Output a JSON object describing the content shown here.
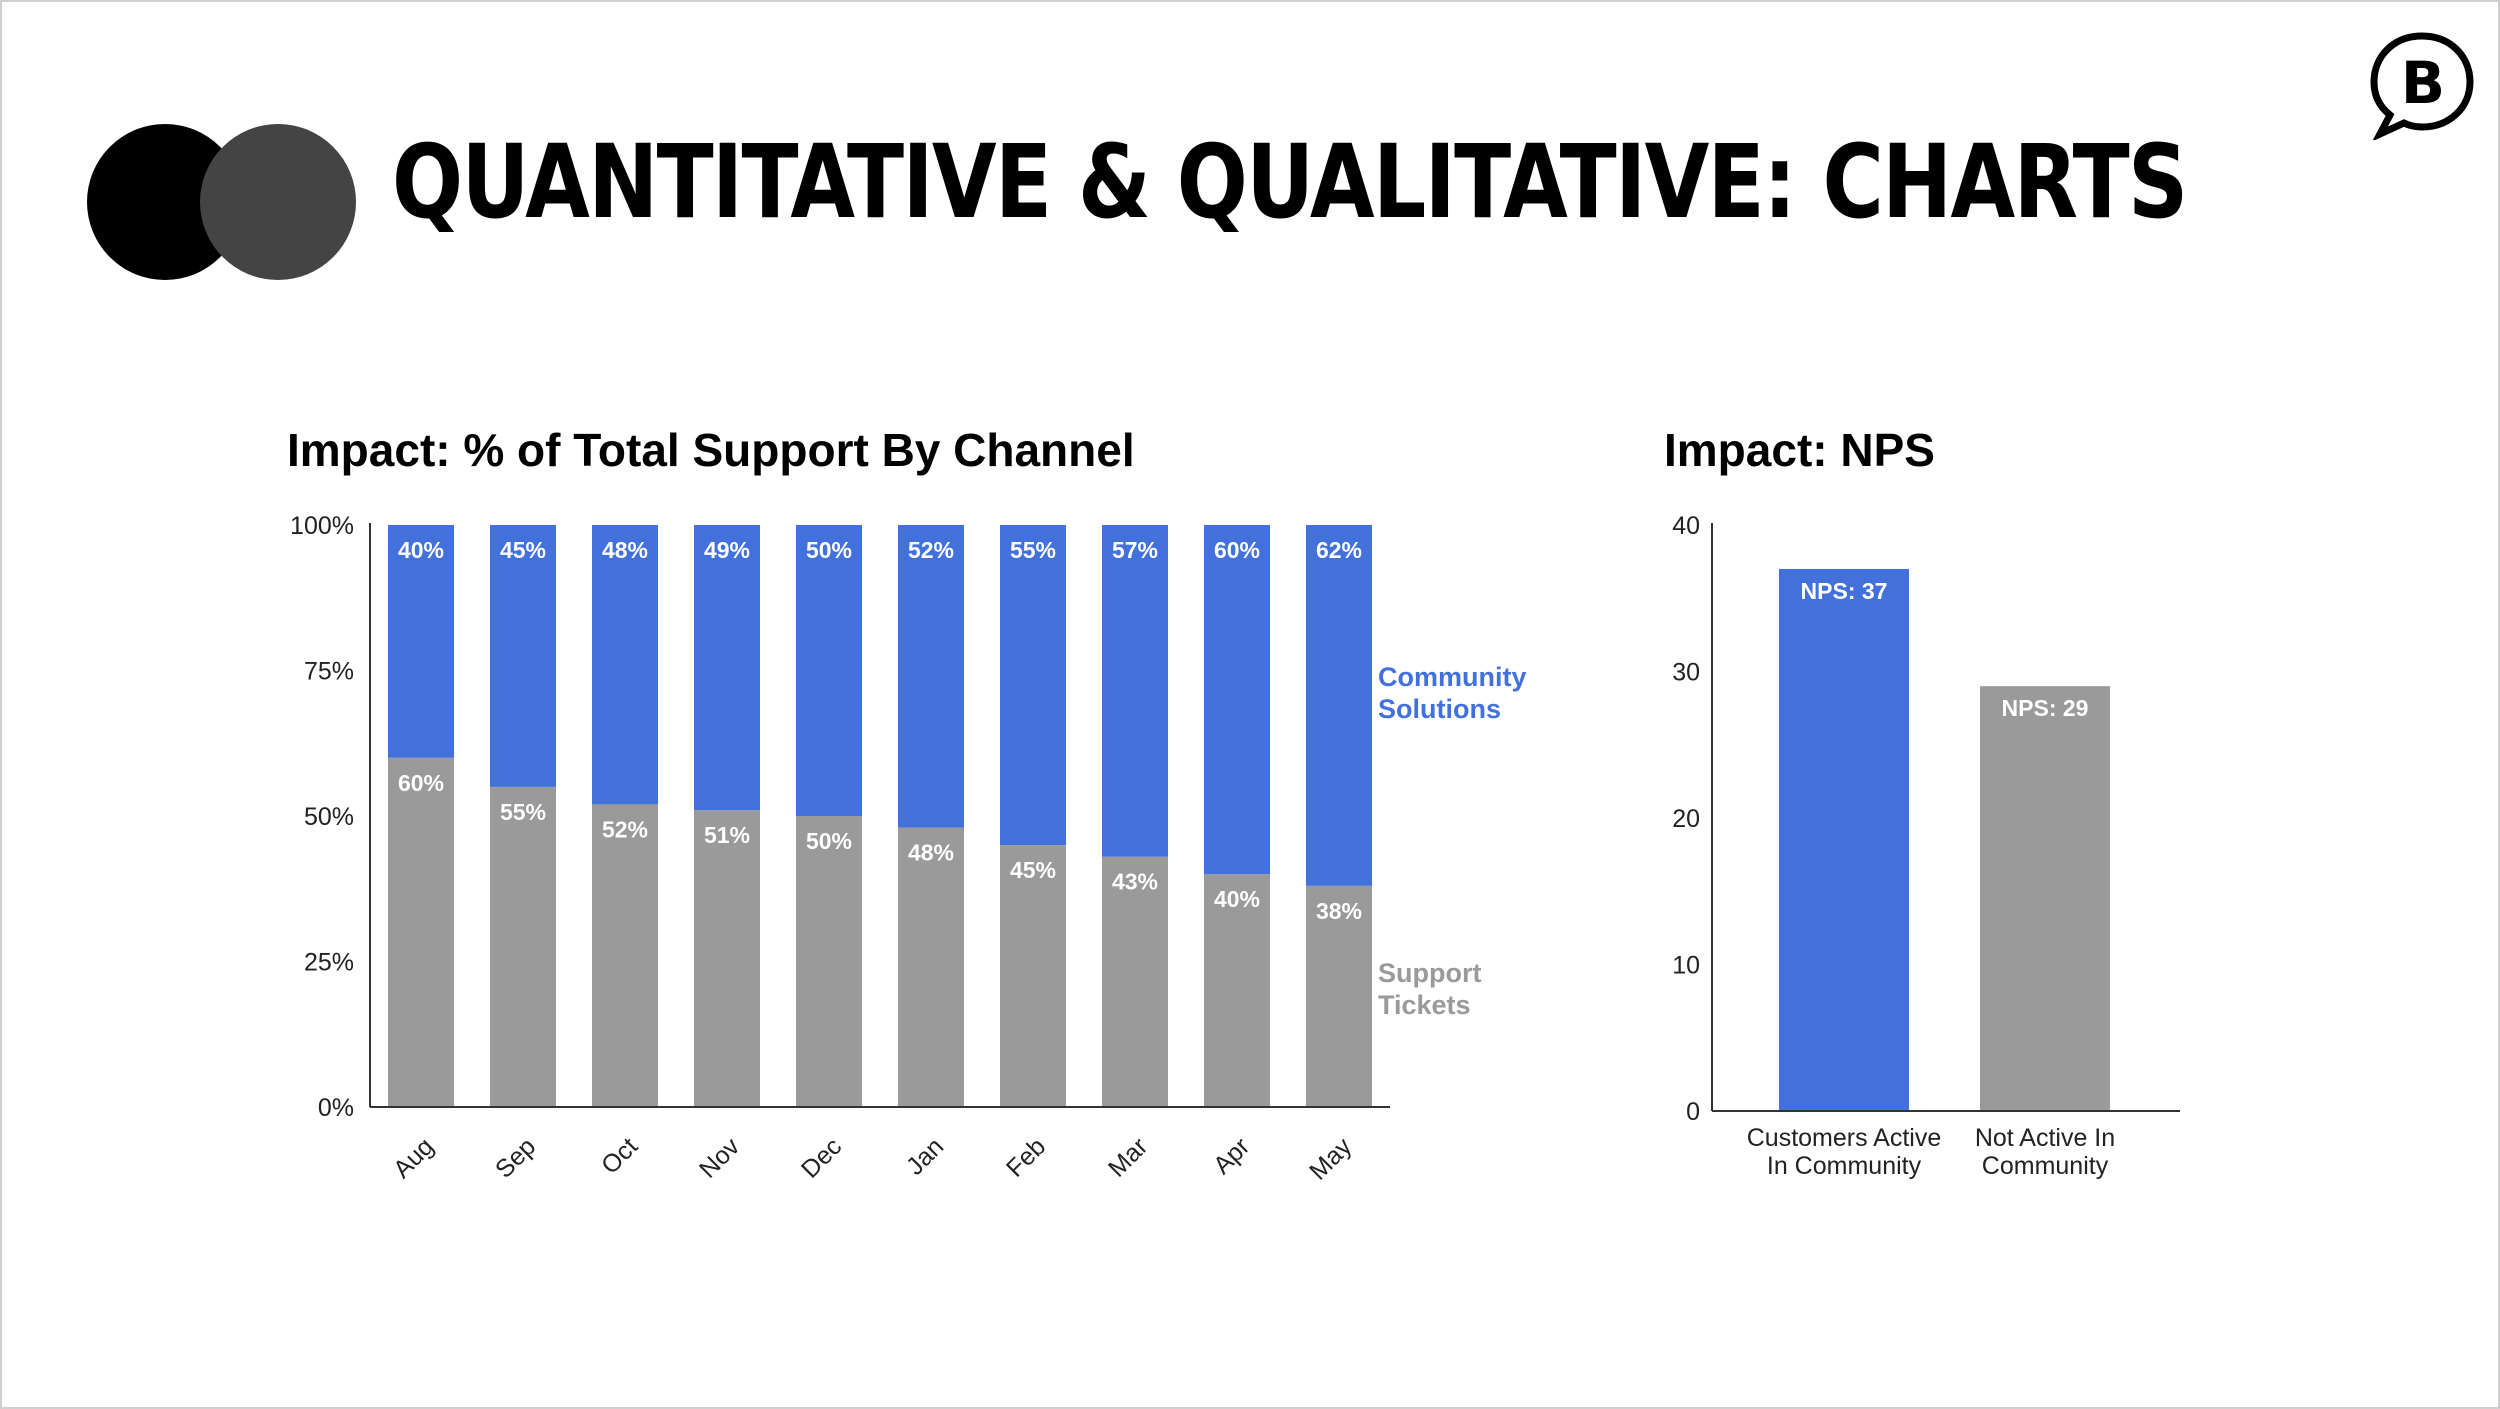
{
  "slide": {
    "title": "QUANTITATIVE & QUALITATIVE: CHARTS",
    "logo_letter": "B"
  },
  "colors": {
    "blue": "#4371DC",
    "gray": "#9A9A9A",
    "dark_circle_1": "#000000",
    "dark_circle_2": "#444444"
  },
  "icons": [
    "overlapping-circles-icon",
    "speech-bubble-b-logo-icon"
  ],
  "chart_data": [
    {
      "type": "bar",
      "stacked": true,
      "title": "Impact: % of Total Support By Channel",
      "categories": [
        "Aug",
        "Sep",
        "Oct",
        "Nov",
        "Dec",
        "Jan",
        "Feb",
        "Mar",
        "Apr",
        "May"
      ],
      "series": [
        {
          "name": "Support Tickets",
          "values": [
            60,
            55,
            52,
            51,
            50,
            48,
            45,
            43,
            40,
            38
          ],
          "labels": [
            "60%",
            "55%",
            "52%",
            "51%",
            "50%",
            "48%",
            "45%",
            "43%",
            "40%",
            "38%"
          ]
        },
        {
          "name": "Community Solutions",
          "values": [
            40,
            45,
            48,
            49,
            50,
            52,
            55,
            57,
            60,
            62
          ],
          "labels": [
            "40%",
            "45%",
            "48%",
            "49%",
            "50%",
            "52%",
            "55%",
            "57%",
            "60%",
            "62%"
          ]
        }
      ],
      "legend_lines": {
        "community": [
          "Community",
          "Solutions"
        ],
        "support": [
          "Support",
          "Tickets"
        ]
      },
      "ylim": [
        0,
        100
      ],
      "yticks": [
        "0%",
        "25%",
        "50%",
        "75%",
        "100%"
      ],
      "legend_position": "right",
      "grid": false
    },
    {
      "type": "bar",
      "title": "Impact: NPS",
      "categories": [
        [
          "Customers Active",
          "In Community"
        ],
        [
          "Not Active In",
          "Community"
        ]
      ],
      "values": [
        37,
        29
      ],
      "labels": [
        "NPS: 37",
        "NPS: 29"
      ],
      "ylim": [
        0,
        40
      ],
      "yticks": [
        "0",
        "10",
        "20",
        "30",
        "40"
      ],
      "grid": false
    }
  ]
}
